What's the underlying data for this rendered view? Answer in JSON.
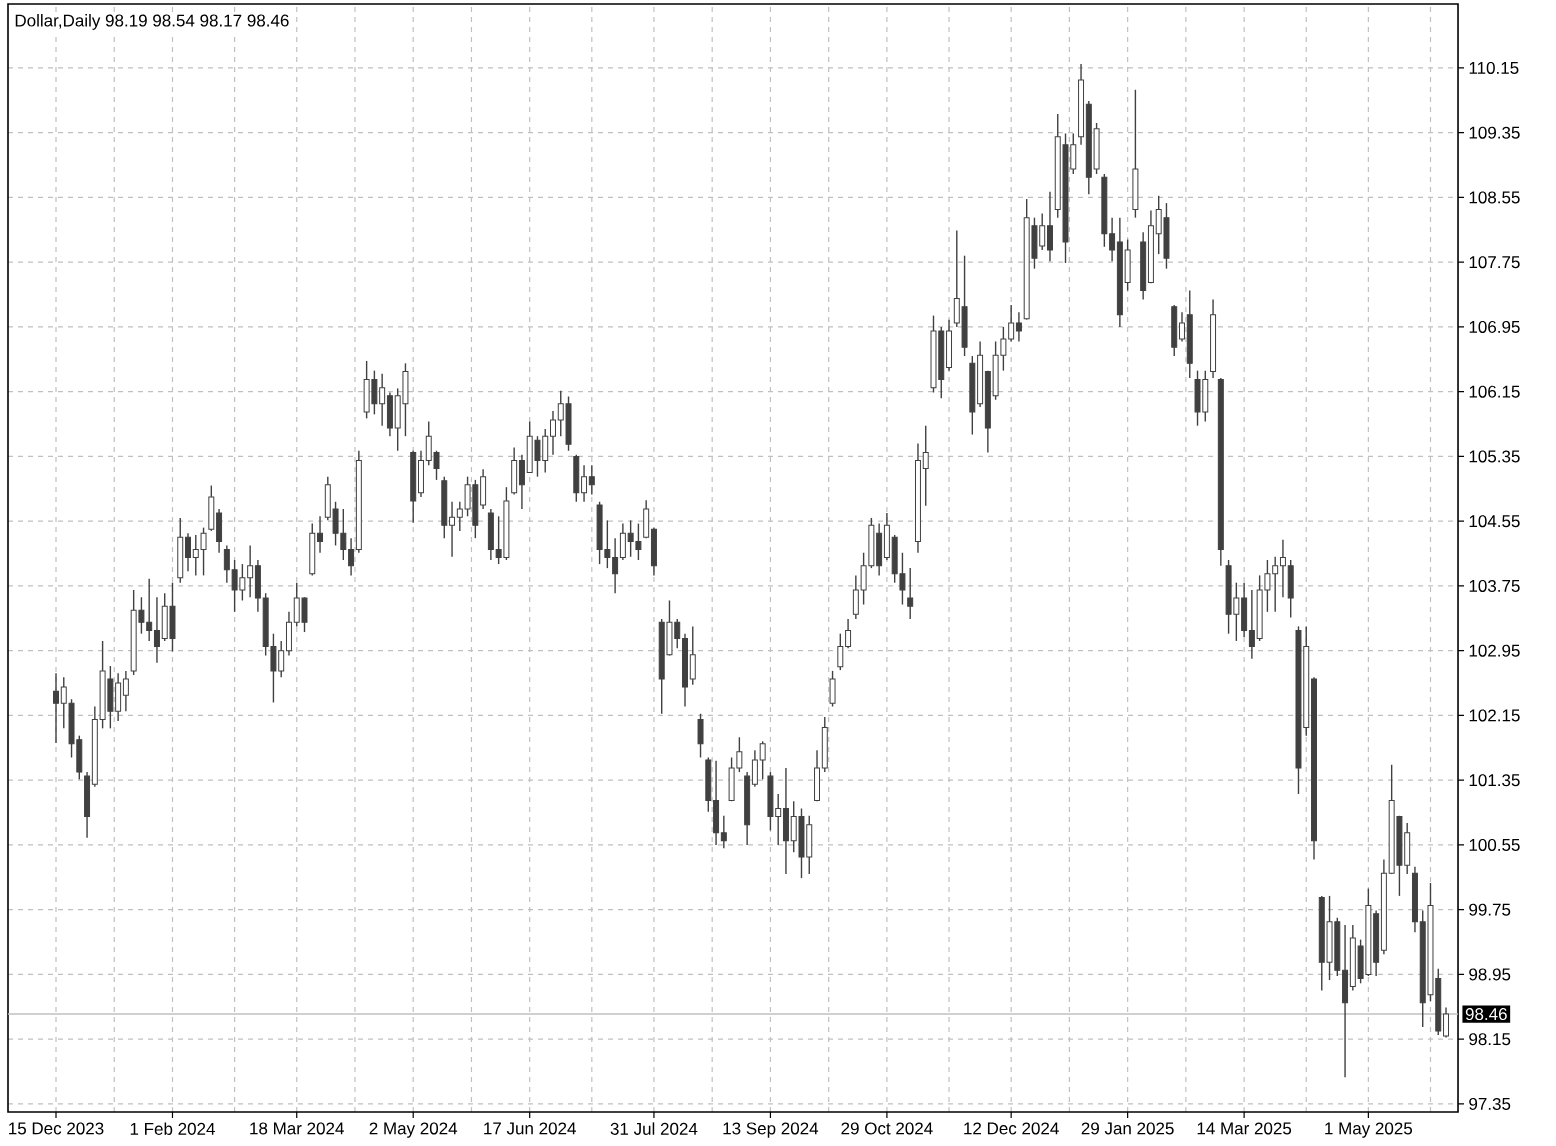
{
  "chart_data": {
    "type": "candlestick",
    "title": "Dollar,Daily 98.19 98.54 98.17 98.46",
    "categories": [
      "15 Dec 2023",
      null,
      null,
      null,
      null,
      null,
      null,
      null,
      null,
      null,
      null,
      null,
      null,
      null,
      null,
      "1 Feb 2024",
      null,
      null,
      null,
      null,
      null,
      null,
      null,
      null,
      null,
      null,
      null,
      null,
      null,
      null,
      null,
      "18 Mar 2024",
      null,
      null,
      null,
      null,
      null,
      null,
      null,
      null,
      null,
      null,
      null,
      null,
      null,
      null,
      "2 May 2024",
      null,
      null,
      null,
      null,
      null,
      null,
      null,
      null,
      null,
      null,
      null,
      null,
      null,
      null,
      "17 Jun 2024",
      null,
      null,
      null,
      null,
      null,
      null,
      null,
      null,
      null,
      null,
      null,
      null,
      null,
      null,
      null,
      "31 Jul 2024",
      null,
      null,
      null,
      null,
      null,
      null,
      null,
      null,
      null,
      null,
      null,
      null,
      null,
      null,
      "13 Sep 2024",
      null,
      null,
      null,
      null,
      null,
      null,
      null,
      null,
      null,
      null,
      null,
      null,
      null,
      null,
      "29 Oct 2024",
      null,
      null,
      null,
      null,
      null,
      null,
      null,
      null,
      null,
      null,
      null,
      null,
      null,
      null,
      null,
      "12 Dec 2024",
      null,
      null,
      null,
      null,
      null,
      null,
      null,
      null,
      null,
      null,
      null,
      null,
      null,
      null,
      "29 Jan 2025",
      null,
      null,
      null,
      null,
      null,
      null,
      null,
      null,
      null,
      null,
      null,
      null,
      null,
      null,
      "14 Mar 2025",
      null,
      null,
      null,
      null,
      null,
      null,
      null,
      null,
      null,
      null,
      null,
      null,
      null,
      null,
      null,
      "1 May 2025",
      null,
      null,
      null,
      null,
      null,
      null,
      null,
      null,
      null,
      null
    ],
    "ohlc": [
      [
        102.45,
        102.67,
        101.81,
        102.3
      ],
      [
        102.3,
        102.62,
        101.99,
        102.5
      ],
      [
        102.3,
        102.35,
        101.63,
        101.8
      ],
      [
        101.85,
        101.9,
        101.36,
        101.45
      ],
      [
        101.4,
        101.45,
        100.64,
        100.9
      ],
      [
        101.3,
        102.26,
        101.27,
        102.1
      ],
      [
        102.1,
        103.07,
        101.99,
        102.7
      ],
      [
        102.6,
        102.76,
        101.99,
        102.2
      ],
      [
        102.2,
        102.67,
        102.08,
        102.55
      ],
      [
        102.4,
        102.7,
        102.2,
        102.6
      ],
      [
        102.7,
        103.7,
        102.65,
        103.45
      ],
      [
        103.45,
        103.61,
        103.16,
        103.3
      ],
      [
        103.3,
        103.84,
        103.07,
        103.2
      ],
      [
        103.2,
        103.61,
        102.8,
        103.0
      ],
      [
        103.1,
        103.66,
        103.07,
        103.5
      ],
      [
        103.5,
        103.79,
        102.94,
        103.1
      ],
      [
        103.85,
        104.59,
        103.79,
        104.35
      ],
      [
        104.35,
        104.4,
        103.93,
        104.1
      ],
      [
        104.1,
        104.38,
        103.88,
        104.2
      ],
      [
        104.2,
        104.47,
        103.88,
        104.4
      ],
      [
        104.45,
        104.99,
        104.43,
        104.85
      ],
      [
        104.65,
        104.7,
        104.16,
        104.3
      ],
      [
        104.2,
        104.25,
        103.79,
        103.95
      ],
      [
        103.95,
        104.07,
        103.43,
        103.7
      ],
      [
        103.7,
        104.02,
        103.57,
        103.85
      ],
      [
        103.85,
        104.25,
        103.61,
        104.0
      ],
      [
        104.0,
        104.07,
        103.43,
        103.6
      ],
      [
        103.6,
        103.66,
        102.89,
        103.0
      ],
      [
        103.0,
        103.16,
        102.31,
        102.7
      ],
      [
        102.7,
        103.07,
        102.62,
        102.95
      ],
      [
        102.95,
        103.43,
        102.89,
        103.3
      ],
      [
        103.3,
        103.79,
        103.25,
        103.6
      ],
      [
        103.6,
        103.61,
        103.18,
        103.3
      ],
      [
        103.9,
        104.52,
        103.88,
        104.4
      ],
      [
        104.4,
        104.61,
        104.16,
        104.3
      ],
      [
        104.6,
        105.1,
        104.56,
        105.0
      ],
      [
        104.7,
        104.79,
        104.25,
        104.4
      ],
      [
        104.4,
        104.7,
        104.07,
        104.2
      ],
      [
        104.2,
        104.34,
        103.88,
        104.0
      ],
      [
        104.2,
        105.42,
        104.16,
        105.3
      ],
      [
        105.9,
        106.53,
        105.82,
        106.3
      ],
      [
        106.3,
        106.41,
        105.87,
        106.0
      ],
      [
        106.0,
        106.37,
        105.73,
        106.2
      ],
      [
        106.1,
        106.14,
        105.6,
        105.7
      ],
      [
        105.7,
        106.19,
        105.42,
        106.1
      ],
      [
        106.0,
        106.5,
        105.6,
        106.4
      ],
      [
        105.4,
        105.42,
        104.53,
        104.8
      ],
      [
        104.9,
        105.42,
        104.85,
        105.3
      ],
      [
        105.3,
        105.78,
        105.24,
        105.6
      ],
      [
        105.4,
        105.42,
        105.06,
        105.2
      ],
      [
        105.05,
        105.1,
        104.34,
        104.5
      ],
      [
        104.5,
        104.79,
        104.11,
        104.6
      ],
      [
        104.6,
        104.79,
        104.43,
        104.7
      ],
      [
        104.7,
        105.1,
        104.61,
        105.0
      ],
      [
        105.0,
        105.06,
        104.34,
        104.5
      ],
      [
        104.75,
        105.19,
        104.7,
        105.1
      ],
      [
        104.65,
        104.7,
        104.07,
        104.2
      ],
      [
        104.2,
        104.61,
        104.02,
        104.1
      ],
      [
        104.1,
        104.97,
        104.07,
        104.8
      ],
      [
        104.9,
        105.46,
        104.88,
        105.3
      ],
      [
        105.3,
        105.37,
        104.7,
        105.0
      ],
      [
        105.15,
        105.78,
        105.15,
        105.6
      ],
      [
        105.55,
        105.6,
        105.1,
        105.3
      ],
      [
        105.3,
        105.69,
        105.15,
        105.6
      ],
      [
        105.6,
        105.91,
        105.37,
        105.8
      ],
      [
        105.8,
        106.16,
        105.6,
        106.0
      ],
      [
        106.0,
        106.09,
        105.42,
        105.5
      ],
      [
        105.35,
        105.37,
        104.79,
        104.9
      ],
      [
        104.9,
        105.24,
        104.79,
        105.1
      ],
      [
        105.1,
        105.24,
        104.88,
        105.0
      ],
      [
        104.75,
        104.79,
        104.02,
        104.2
      ],
      [
        104.2,
        104.56,
        103.97,
        104.1
      ],
      [
        104.1,
        104.34,
        103.66,
        103.9
      ],
      [
        104.1,
        104.52,
        104.07,
        104.4
      ],
      [
        104.4,
        104.56,
        104.11,
        104.3
      ],
      [
        104.3,
        104.52,
        104.07,
        104.2
      ],
      [
        104.35,
        104.81,
        104.34,
        104.7
      ],
      [
        104.45,
        104.47,
        103.88,
        104.0
      ],
      [
        103.3,
        103.34,
        102.17,
        102.6
      ],
      [
        102.9,
        103.57,
        102.89,
        103.3
      ],
      [
        103.3,
        103.34,
        102.98,
        103.1
      ],
      [
        103.1,
        103.16,
        102.26,
        102.5
      ],
      [
        102.6,
        103.25,
        102.53,
        102.9
      ],
      [
        102.1,
        102.17,
        101.63,
        101.8
      ],
      [
        101.6,
        101.63,
        100.96,
        101.1
      ],
      [
        101.1,
        101.59,
        100.55,
        100.7
      ],
      [
        100.7,
        100.91,
        100.51,
        100.6
      ],
      [
        101.1,
        101.63,
        101.09,
        101.5
      ],
      [
        101.5,
        101.88,
        101.45,
        101.7
      ],
      [
        101.4,
        101.45,
        100.55,
        100.8
      ],
      [
        101.3,
        101.72,
        101.27,
        101.6
      ],
      [
        101.6,
        101.83,
        101.36,
        101.8
      ],
      [
        101.4,
        101.45,
        100.73,
        100.9
      ],
      [
        100.9,
        101.18,
        100.55,
        101.0
      ],
      [
        101.0,
        101.5,
        100.19,
        100.6
      ],
      [
        100.6,
        101.09,
        100.46,
        100.9
      ],
      [
        100.9,
        101.0,
        100.14,
        100.4
      ],
      [
        100.4,
        100.91,
        100.19,
        100.8
      ],
      [
        101.1,
        101.72,
        101.09,
        101.5
      ],
      [
        101.5,
        102.13,
        101.45,
        102.0
      ],
      [
        102.3,
        102.7,
        102.26,
        102.6
      ],
      [
        102.75,
        103.16,
        102.71,
        103.0
      ],
      [
        103.0,
        103.34,
        102.98,
        103.2
      ],
      [
        103.4,
        103.88,
        103.34,
        103.7
      ],
      [
        103.7,
        104.16,
        103.52,
        104.0
      ],
      [
        104.0,
        104.59,
        103.97,
        104.5
      ],
      [
        104.4,
        104.52,
        103.88,
        104.0
      ],
      [
        104.1,
        104.65,
        104.07,
        104.5
      ],
      [
        104.35,
        104.38,
        103.79,
        103.9
      ],
      [
        103.9,
        104.16,
        103.52,
        103.7
      ],
      [
        103.6,
        103.97,
        103.34,
        103.5
      ],
      [
        104.3,
        105.51,
        104.16,
        105.3
      ],
      [
        105.2,
        105.73,
        104.74,
        105.4
      ],
      [
        106.2,
        107.09,
        106.14,
        106.9
      ],
      [
        106.9,
        106.95,
        106.07,
        106.3
      ],
      [
        106.45,
        107.04,
        106.41,
        106.9
      ],
      [
        107.0,
        108.14,
        106.95,
        107.3
      ],
      [
        107.2,
        107.83,
        106.59,
        106.7
      ],
      [
        106.5,
        106.59,
        105.62,
        105.9
      ],
      [
        106.0,
        106.77,
        105.96,
        106.6
      ],
      [
        106.4,
        106.41,
        105.4,
        105.7
      ],
      [
        106.1,
        106.77,
        106.05,
        106.6
      ],
      [
        106.6,
        106.95,
        106.41,
        106.8
      ],
      [
        106.8,
        107.22,
        106.77,
        107.0
      ],
      [
        107.0,
        107.13,
        106.77,
        106.9
      ],
      [
        107.05,
        108.53,
        107.04,
        108.3
      ],
      [
        108.2,
        108.3,
        107.67,
        107.8
      ],
      [
        107.95,
        108.35,
        107.9,
        108.2
      ],
      [
        108.2,
        108.62,
        107.76,
        107.9
      ],
      [
        108.4,
        109.58,
        108.3,
        109.3
      ],
      [
        109.2,
        109.34,
        107.74,
        108.0
      ],
      [
        108.9,
        109.34,
        108.84,
        109.2
      ],
      [
        109.3,
        110.2,
        109.2,
        110.0
      ],
      [
        109.7,
        109.74,
        108.59,
        108.8
      ],
      [
        108.9,
        109.47,
        108.84,
        109.4
      ],
      [
        108.8,
        108.84,
        107.94,
        108.1
      ],
      [
        108.1,
        108.3,
        107.76,
        107.9
      ],
      [
        108.0,
        108.3,
        106.95,
        107.1
      ],
      [
        107.5,
        108.03,
        107.4,
        107.9
      ],
      [
        108.4,
        109.88,
        108.3,
        108.9
      ],
      [
        108.0,
        108.12,
        107.29,
        107.4
      ],
      [
        107.5,
        108.39,
        107.49,
        108.2
      ],
      [
        108.1,
        108.57,
        107.85,
        108.4
      ],
      [
        108.3,
        108.48,
        107.67,
        107.8
      ],
      [
        107.2,
        107.22,
        106.59,
        106.7
      ],
      [
        106.8,
        107.13,
        106.77,
        107.0
      ],
      [
        107.1,
        107.4,
        106.32,
        106.5
      ],
      [
        106.3,
        106.41,
        105.73,
        105.9
      ],
      [
        105.9,
        106.41,
        105.78,
        106.3
      ],
      [
        106.4,
        107.29,
        106.32,
        107.1
      ],
      [
        106.3,
        106.32,
        104.0,
        104.2
      ],
      [
        104.0,
        104.07,
        103.16,
        103.4
      ],
      [
        103.4,
        103.79,
        103.07,
        103.6
      ],
      [
        103.6,
        103.79,
        103.12,
        103.2
      ],
      [
        103.2,
        103.7,
        102.85,
        103.0
      ],
      [
        103.1,
        103.88,
        103.07,
        103.7
      ],
      [
        103.7,
        104.07,
        103.43,
        103.9
      ],
      [
        103.9,
        104.11,
        103.43,
        104.0
      ],
      [
        104.0,
        104.32,
        103.61,
        104.1
      ],
      [
        104.0,
        104.07,
        103.36,
        103.6
      ],
      [
        103.2,
        103.25,
        101.18,
        101.5
      ],
      [
        102.0,
        103.25,
        101.9,
        103.0
      ],
      [
        102.6,
        102.62,
        100.37,
        100.6
      ],
      [
        99.9,
        99.92,
        98.75,
        99.1
      ],
      [
        99.1,
        99.92,
        98.88,
        99.6
      ],
      [
        99.6,
        99.65,
        98.93,
        99.0
      ],
      [
        99.0,
        99.56,
        97.68,
        98.6
      ],
      [
        98.8,
        99.56,
        98.75,
        99.4
      ],
      [
        99.3,
        99.38,
        98.84,
        98.9
      ],
      [
        98.95,
        100.01,
        98.93,
        99.8
      ],
      [
        99.7,
        99.74,
        98.93,
        99.1
      ],
      [
        99.25,
        100.37,
        99.2,
        100.2
      ],
      [
        100.2,
        101.54,
        100.19,
        101.1
      ],
      [
        100.9,
        100.91,
        99.92,
        100.3
      ],
      [
        100.3,
        100.82,
        100.19,
        100.7
      ],
      [
        100.2,
        100.28,
        99.47,
        99.6
      ],
      [
        99.6,
        99.74,
        98.3,
        98.6
      ],
      [
        98.7,
        100.08,
        98.62,
        99.8
      ],
      [
        98.9,
        99.02,
        98.2,
        98.25
      ],
      [
        98.19,
        98.54,
        98.17,
        98.46
      ]
    ],
    "color": "#404040",
    "ylim": [
      97.25,
      110.94
    ],
    "yticks": [
      97.35,
      98.15,
      98.95,
      99.75,
      100.55,
      101.35,
      102.15,
      102.95,
      103.75,
      104.55,
      105.35,
      106.15,
      106.95,
      107.75,
      108.55,
      109.35,
      110.15
    ],
    "grid": true,
    "ref_lines": [
      {
        "axis": "y",
        "value": 98.46,
        "label": "98.46",
        "color": "#c0c0c0"
      }
    ]
  }
}
